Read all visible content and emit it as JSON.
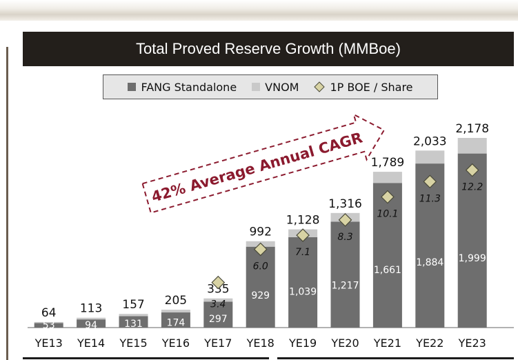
{
  "colors": {
    "fang": "#6e6e6e",
    "vnom": "#c9c9c9",
    "marker_fill": "#d8d3a4",
    "marker_stroke": "#4a4a3a",
    "title_bg": "#231f1b",
    "cagr": "#8b1a2e"
  },
  "annotation": "42% Average Annual CAGR",
  "chart_data": {
    "type": "bar",
    "title": "Total Proved Reserve Growth (MMBoe)",
    "categories": [
      "YE13",
      "YE14",
      "YE15",
      "YE16",
      "YE17",
      "YE18",
      "YE19",
      "YE20",
      "YE21",
      "YE22",
      "YE23"
    ],
    "series": [
      {
        "name": "FANG Standalone",
        "values": [
          53,
          94,
          131,
          174,
          297,
          929,
          1039,
          1217,
          1661,
          1884,
          1999
        ]
      },
      {
        "name": "VNOM",
        "values": [
          11,
          19,
          26,
          31,
          38,
          63,
          89,
          99,
          128,
          149,
          179
        ]
      }
    ],
    "totals": [
      64,
      113,
      157,
      205,
      335,
      992,
      1128,
      1316,
      1789,
      2033,
      2178
    ],
    "totals_labels": [
      "64",
      "113",
      "157",
      "205",
      "335",
      "992",
      "1,128",
      "1,316",
      "1,789",
      "2,033",
      "2,178"
    ],
    "fang_labels": [
      "53",
      "94",
      "131",
      "174",
      "297",
      "929",
      "1,039",
      "1,217",
      "1,661",
      "1,884",
      "1,999"
    ],
    "boe_per_share": {
      "name": "1P BOE / Share",
      "categories": [
        "YE17",
        "YE18",
        "YE19",
        "YE20",
        "YE21",
        "YE22",
        "YE23"
      ],
      "values": [
        3.4,
        6.0,
        7.1,
        8.3,
        10.1,
        11.3,
        12.2
      ],
      "labels": [
        "3.4",
        "6.0",
        "7.1",
        "8.3",
        "10.1",
        "11.3",
        "12.2"
      ]
    },
    "legend": [
      "FANG Standalone",
      "VNOM",
      "1P BOE / Share"
    ],
    "legend_position": "top",
    "grid": false,
    "ylim": [
      0,
      2178
    ]
  }
}
